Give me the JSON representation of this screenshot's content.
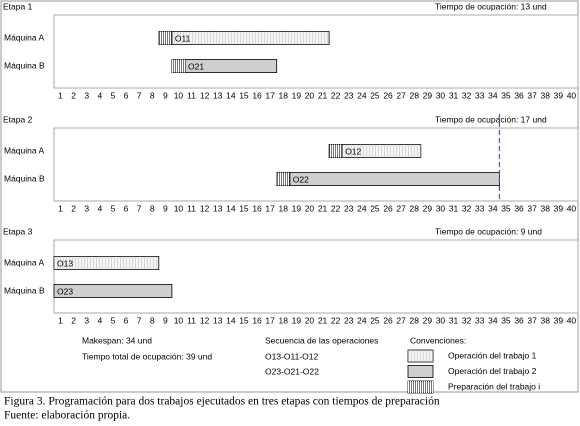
{
  "chart_data": [
    {
      "type": "gantt",
      "title": "Etapa 1",
      "annotation": "Tiempo de ocupación: 13 und",
      "categories": [
        "Máquina A",
        "Máquina B"
      ],
      "tasks": [
        {
          "name": "O11",
          "row": "Máquina A",
          "setup_start": 8.5,
          "start": 9.5,
          "end": 21.5,
          "color": "#f4f4f4"
        },
        {
          "name": "O21",
          "row": "Máquina B",
          "setup_start": 9.5,
          "start": 10.5,
          "end": 17.5,
          "color": "#cfcfcf"
        }
      ],
      "xlim": [
        0.5,
        40.5
      ],
      "xticks": [
        1,
        2,
        3,
        4,
        5,
        6,
        7,
        8,
        9,
        10,
        11,
        12,
        13,
        14,
        15,
        16,
        17,
        18,
        19,
        20,
        21,
        22,
        23,
        24,
        25,
        26,
        27,
        28,
        29,
        30,
        31,
        32,
        33,
        34,
        35,
        36,
        37,
        38,
        39,
        40
      ]
    },
    {
      "type": "gantt",
      "title": "Etapa 2",
      "annotation": "Tiempo de ocupación: 17 und",
      "categories": [
        "Máquina A",
        "Máquina B"
      ],
      "tasks": [
        {
          "name": "O12",
          "row": "Máquina A",
          "setup_start": 21.5,
          "start": 22.5,
          "end": 28.5,
          "color": "#f4f4f4"
        },
        {
          "name": "O22",
          "row": "Máquina B",
          "setup_start": 17.5,
          "start": 18.5,
          "end": 34.5,
          "color": "#cfcfcf"
        }
      ],
      "vline": 34.5,
      "xlim": [
        0.5,
        40.5
      ],
      "xticks": [
        1,
        2,
        3,
        4,
        5,
        6,
        7,
        8,
        9,
        10,
        11,
        12,
        13,
        14,
        15,
        16,
        17,
        18,
        19,
        20,
        21,
        22,
        23,
        24,
        25,
        26,
        27,
        28,
        29,
        30,
        31,
        32,
        33,
        34,
        35,
        36,
        37,
        38,
        39,
        40
      ]
    },
    {
      "type": "gantt",
      "title": "Etapa 3",
      "annotation": "Tiempo de ocupación: 9 und",
      "categories": [
        "Máquina A",
        "Máquina B"
      ],
      "tasks": [
        {
          "name": "O13",
          "row": "Máquina A",
          "start": 0.5,
          "end": 8.5,
          "color": "#f4f4f4"
        },
        {
          "name": "O23",
          "row": "Máquina B",
          "start": 0.5,
          "end": 9.5,
          "color": "#cfcfcf"
        }
      ],
      "xlim": [
        0.5,
        40.5
      ],
      "xticks": [
        1,
        2,
        3,
        4,
        5,
        6,
        7,
        8,
        9,
        10,
        11,
        12,
        13,
        14,
        15,
        16,
        17,
        18,
        19,
        20,
        21,
        22,
        23,
        24,
        25,
        26,
        27,
        28,
        29,
        30,
        31,
        32,
        33,
        34,
        35,
        36,
        37,
        38,
        39,
        40
      ]
    }
  ],
  "notes": {
    "makespan": "Makespan: 34 und",
    "total": "Tiempo total de ocupación: 39 und",
    "sequence_title": "Secuencia de las operaciones",
    "sequences": [
      "O13-O11-O12",
      "O23-O21-O22"
    ]
  },
  "legend": {
    "title": "Convenciones:",
    "items": [
      {
        "label": "Operación del trabajo 1",
        "color": "#f4f4f4"
      },
      {
        "label": "Operación del trabajo 2",
        "color": "#cfcfcf"
      },
      {
        "label": "Preparación del trabajo i",
        "color": "#777777"
      }
    ]
  },
  "caption": [
    "Figura 3. Programación para dos trabajos ejecutados en tres etapas con tiempos de preparación",
    "Fuente: elaboración propia."
  ]
}
